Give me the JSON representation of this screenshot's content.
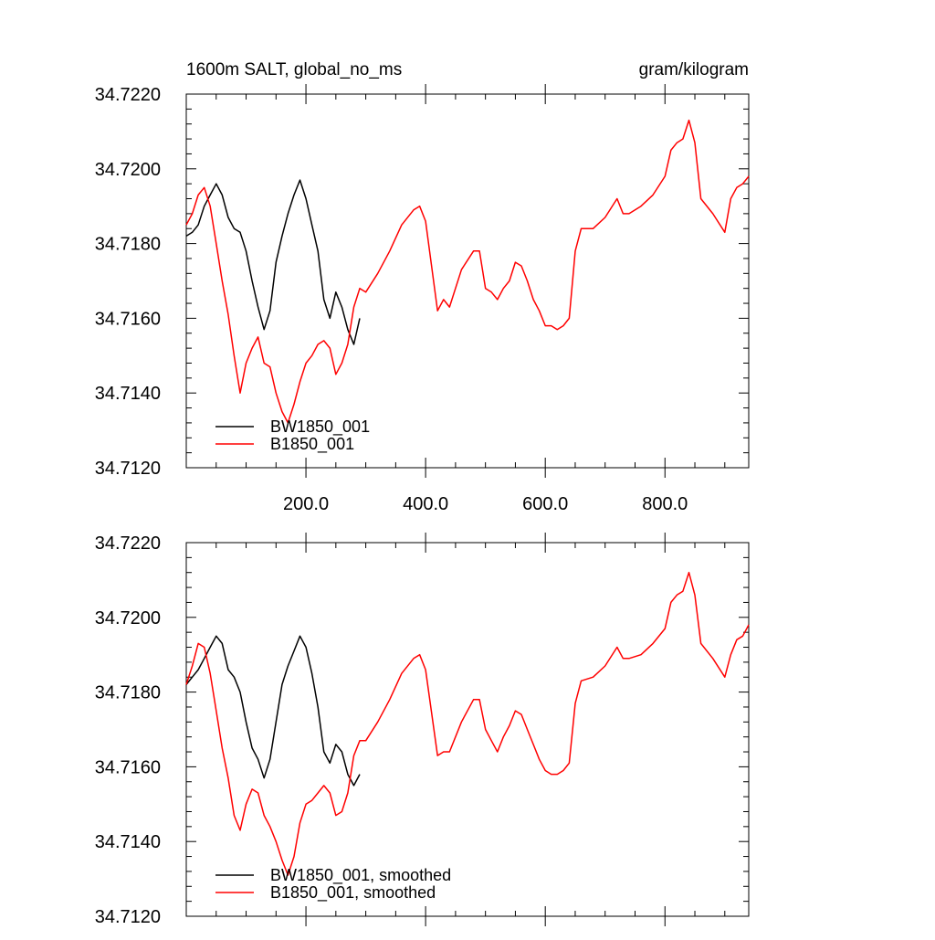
{
  "figure": {
    "title_left": "1600m SALT, global_no_ms",
    "title_right": "gram/kilogram"
  },
  "chart_data": [
    {
      "type": "line",
      "xlim": [
        0,
        940
      ],
      "ylim": [
        34.712,
        34.722
      ],
      "xticks": [
        200,
        400,
        600,
        800
      ],
      "xtick_labels": [
        "200.0",
        "400.0",
        "600.0",
        "800.0"
      ],
      "yticks": [
        34.712,
        34.714,
        34.716,
        34.718,
        34.72,
        34.722
      ],
      "ytick_labels": [
        "34.7120",
        "34.7140",
        "34.7160",
        "34.7180",
        "34.7200",
        "34.7220"
      ],
      "legend_position": "bottom-left",
      "series": [
        {
          "name": "BW1850_001",
          "color": "#000000",
          "x": [
            0,
            10,
            20,
            30,
            40,
            50,
            60,
            70,
            80,
            90,
            100,
            110,
            120,
            130,
            140,
            150,
            160,
            170,
            180,
            190,
            200,
            210,
            220,
            230,
            240,
            250,
            260,
            270,
            280,
            290
          ],
          "y": [
            34.7182,
            34.7183,
            34.7185,
            34.719,
            34.7193,
            34.7196,
            34.7193,
            34.7187,
            34.7184,
            34.7183,
            34.7178,
            34.717,
            34.7163,
            34.7157,
            34.7162,
            34.7175,
            34.7182,
            34.7188,
            34.7193,
            34.7197,
            34.7192,
            34.7185,
            34.7178,
            34.7165,
            34.716,
            34.7167,
            34.7163,
            34.7157,
            34.7153,
            34.716
          ]
        },
        {
          "name": "B1850_001",
          "color": "#ff0000",
          "x": [
            0,
            10,
            20,
            30,
            40,
            50,
            60,
            70,
            80,
            90,
            100,
            110,
            120,
            130,
            140,
            150,
            160,
            170,
            180,
            190,
            200,
            210,
            220,
            230,
            240,
            250,
            260,
            270,
            280,
            290,
            300,
            320,
            340,
            360,
            380,
            390,
            400,
            420,
            430,
            440,
            460,
            480,
            490,
            500,
            510,
            520,
            530,
            540,
            550,
            560,
            570,
            580,
            590,
            600,
            610,
            620,
            630,
            640,
            650,
            660,
            680,
            700,
            720,
            730,
            740,
            760,
            780,
            800,
            810,
            820,
            830,
            840,
            850,
            860,
            880,
            900,
            910,
            920,
            930,
            940
          ],
          "y": [
            34.7185,
            34.7188,
            34.7193,
            34.7195,
            34.719,
            34.718,
            34.717,
            34.7161,
            34.715,
            34.714,
            34.7148,
            34.7152,
            34.7155,
            34.7148,
            34.7147,
            34.714,
            34.7135,
            34.7132,
            34.7137,
            34.7143,
            34.7148,
            34.715,
            34.7153,
            34.7154,
            34.7152,
            34.7145,
            34.7148,
            34.7153,
            34.7163,
            34.7168,
            34.7167,
            34.7172,
            34.7178,
            34.7185,
            34.7189,
            34.719,
            34.7186,
            34.7162,
            34.7165,
            34.7163,
            34.7173,
            34.7178,
            34.7178,
            34.7168,
            34.7167,
            34.7165,
            34.7168,
            34.717,
            34.7175,
            34.7174,
            34.717,
            34.7165,
            34.7162,
            34.7158,
            34.7158,
            34.7157,
            34.7158,
            34.716,
            34.7178,
            34.7184,
            34.7184,
            34.7187,
            34.7192,
            34.7188,
            34.7188,
            34.719,
            34.7193,
            34.7198,
            34.7205,
            34.7207,
            34.7208,
            34.7213,
            34.7207,
            34.7192,
            34.7188,
            34.7183,
            34.7192,
            34.7195,
            34.7196,
            34.7198
          ]
        }
      ]
    },
    {
      "type": "line",
      "xlim": [
        0,
        940
      ],
      "ylim": [
        34.712,
        34.722
      ],
      "yticks": [
        34.712,
        34.714,
        34.716,
        34.718,
        34.72,
        34.722
      ],
      "ytick_labels": [
        "34.7120",
        "34.7140",
        "34.7160",
        "34.7180",
        "34.7200",
        "34.7220"
      ],
      "legend_position": "bottom-left",
      "series": [
        {
          "name": "BW1850_001, smoothed",
          "color": "#000000",
          "x": [
            0,
            10,
            20,
            30,
            40,
            50,
            60,
            70,
            80,
            90,
            100,
            110,
            120,
            130,
            140,
            150,
            160,
            170,
            180,
            190,
            200,
            210,
            220,
            230,
            240,
            250,
            260,
            270,
            280,
            290
          ],
          "y": [
            34.7182,
            34.7184,
            34.7186,
            34.7189,
            34.7192,
            34.7195,
            34.7193,
            34.7186,
            34.7184,
            34.718,
            34.7172,
            34.7165,
            34.7162,
            34.7157,
            34.7162,
            34.7172,
            34.7182,
            34.7187,
            34.7191,
            34.7195,
            34.7192,
            34.7185,
            34.7176,
            34.7164,
            34.7161,
            34.7166,
            34.7164,
            34.7158,
            34.7155,
            34.7158
          ]
        },
        {
          "name": "B1850_001, smoothed",
          "color": "#ff0000",
          "x": [
            0,
            10,
            20,
            30,
            40,
            50,
            60,
            70,
            80,
            90,
            100,
            110,
            120,
            130,
            140,
            150,
            160,
            170,
            180,
            190,
            200,
            210,
            220,
            230,
            240,
            250,
            260,
            270,
            280,
            290,
            300,
            320,
            340,
            360,
            380,
            390,
            400,
            420,
            430,
            440,
            460,
            480,
            490,
            500,
            510,
            520,
            530,
            540,
            550,
            560,
            570,
            580,
            590,
            600,
            610,
            620,
            630,
            640,
            650,
            660,
            680,
            700,
            720,
            730,
            740,
            760,
            780,
            800,
            810,
            820,
            830,
            840,
            850,
            860,
            880,
            900,
            910,
            920,
            930,
            940
          ],
          "y": [
            34.7182,
            34.7187,
            34.7193,
            34.7192,
            34.7185,
            34.7175,
            34.7165,
            34.7157,
            34.7147,
            34.7143,
            34.715,
            34.7154,
            34.7153,
            34.7147,
            34.7144,
            34.714,
            34.7135,
            34.7131,
            34.7136,
            34.7145,
            34.715,
            34.7151,
            34.7153,
            34.7155,
            34.7153,
            34.7147,
            34.7148,
            34.7153,
            34.7163,
            34.7167,
            34.7167,
            34.7172,
            34.7178,
            34.7185,
            34.7189,
            34.719,
            34.7186,
            34.7163,
            34.7164,
            34.7164,
            34.7172,
            34.7178,
            34.7178,
            34.717,
            34.7167,
            34.7164,
            34.7168,
            34.7171,
            34.7175,
            34.7174,
            34.717,
            34.7166,
            34.7162,
            34.7159,
            34.7158,
            34.7158,
            34.7159,
            34.7161,
            34.7177,
            34.7183,
            34.7184,
            34.7187,
            34.7192,
            34.7189,
            34.7189,
            34.719,
            34.7193,
            34.7197,
            34.7204,
            34.7206,
            34.7207,
            34.7212,
            34.7206,
            34.7193,
            34.7189,
            34.7184,
            34.719,
            34.7194,
            34.7195,
            34.7198
          ]
        }
      ]
    }
  ]
}
